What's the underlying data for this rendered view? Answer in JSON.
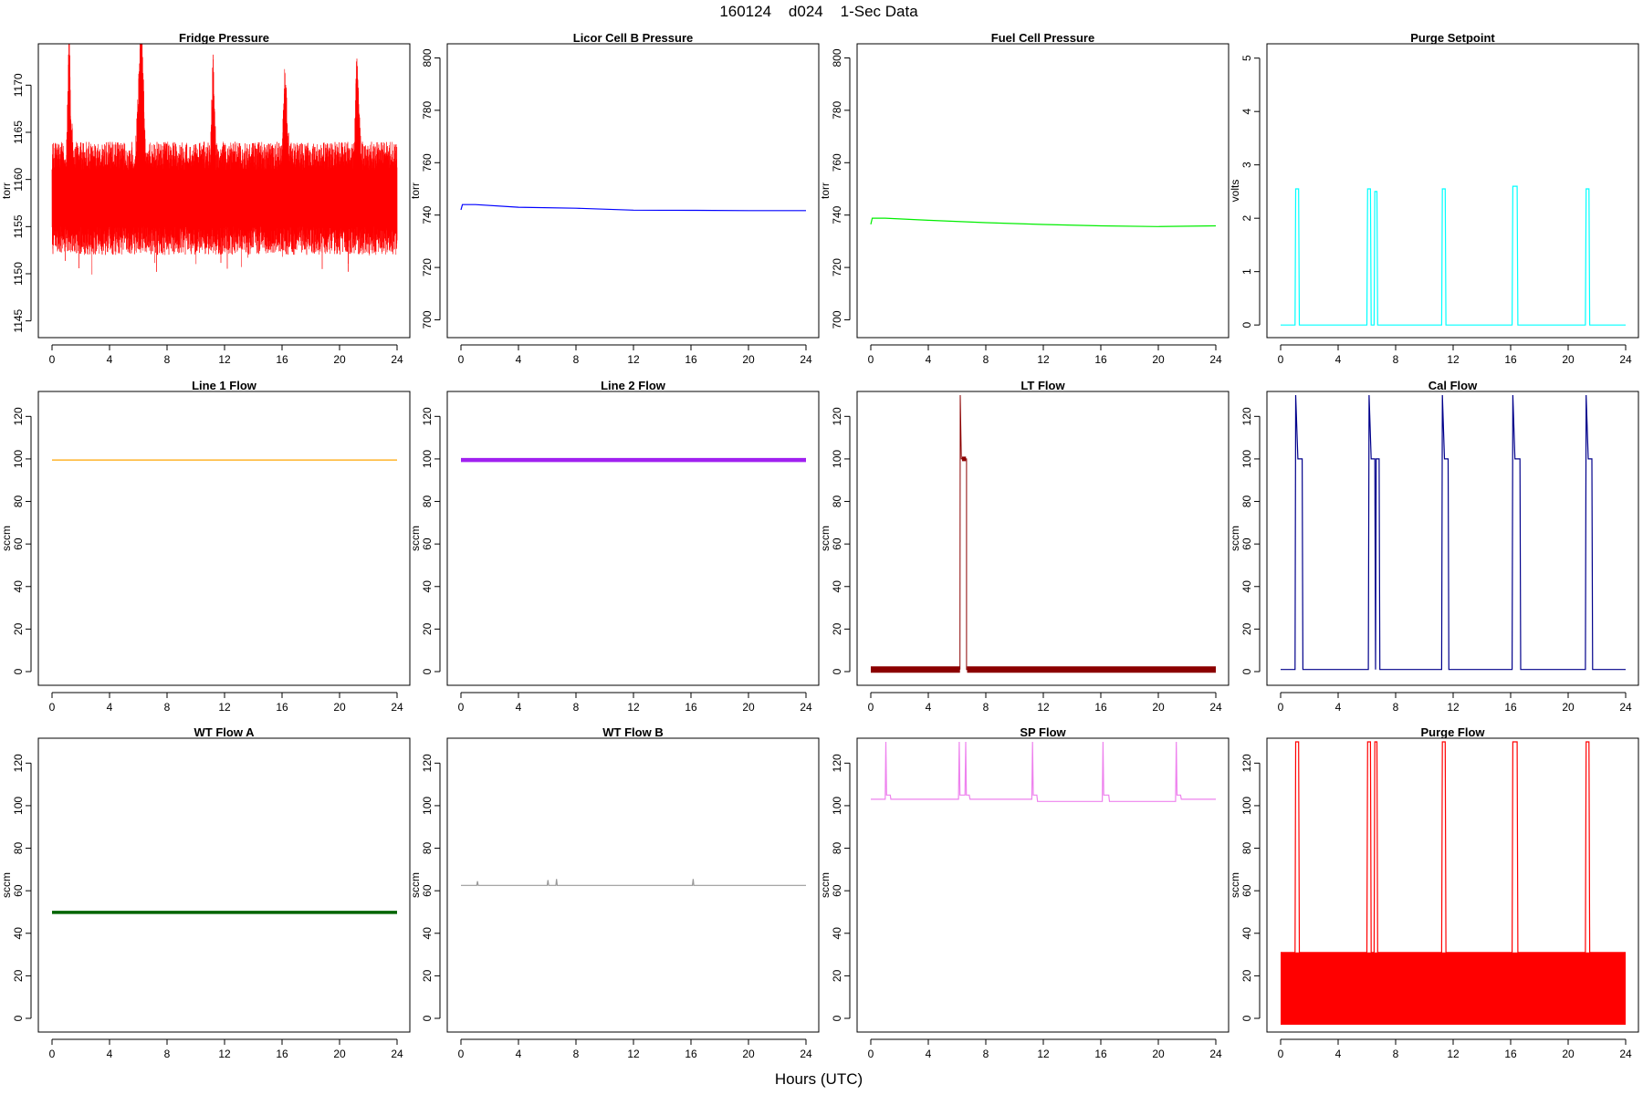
{
  "figure": {
    "title": "160124    d024    1-Sec Data",
    "xlabel": "Hours (UTC)"
  },
  "chart_data": [
    {
      "type": "line",
      "title": "Fridge Pressure",
      "ylabel": "torr",
      "color": "#ff0000",
      "xlim": [
        0,
        24
      ],
      "ylim": [
        1144,
        1174
      ],
      "xticks": [
        0,
        4,
        8,
        12,
        16,
        20,
        24
      ],
      "yticks": [
        1145,
        1150,
        1155,
        1160,
        1165,
        1170
      ],
      "noise": {
        "mean": 1158,
        "amplitude": 5,
        "thin": 0.5
      },
      "series": [
        {
          "x": [
            0,
            1.0,
            1.2,
            1.3,
            1.5,
            3,
            5.8,
            6.0,
            6.2,
            6.5,
            9,
            11.0,
            11.2,
            11.4,
            13,
            16.0,
            16.2,
            16.5,
            18,
            21.0,
            21.2,
            21.5,
            24
          ],
          "y": [
            1158,
            1158,
            1171,
            1162,
            1158,
            1158,
            1158,
            1164,
            1173,
            1158,
            1158,
            1158,
            1168,
            1158,
            1158,
            1158,
            1167,
            1158,
            1158,
            1158,
            1168,
            1158,
            1158
          ]
        }
      ]
    },
    {
      "type": "line",
      "title": "Licor Cell B Pressure",
      "ylabel": "torr",
      "color": "#0000ff",
      "xlim": [
        0,
        24
      ],
      "ylim": [
        696,
        804
      ],
      "xticks": [
        0,
        4,
        8,
        12,
        16,
        20,
        24
      ],
      "yticks": [
        700,
        720,
        740,
        760,
        780,
        800
      ],
      "series": [
        {
          "x": [
            0,
            0.1,
            1,
            4,
            8,
            12,
            16,
            20,
            24
          ],
          "y": [
            742,
            744,
            744,
            743,
            742.6,
            741.9,
            741.8,
            741.7,
            741.7
          ]
        }
      ]
    },
    {
      "type": "line",
      "title": "Fuel Cell Pressure",
      "ylabel": "torr",
      "color": "#00ee00",
      "xlim": [
        0,
        24
      ],
      "ylim": [
        696,
        804
      ],
      "xticks": [
        0,
        4,
        8,
        12,
        16,
        20,
        24
      ],
      "yticks": [
        700,
        720,
        740,
        760,
        780,
        800
      ],
      "series": [
        {
          "x": [
            0,
            0.1,
            1,
            4,
            8,
            12,
            16,
            20,
            24
          ],
          "y": [
            736.5,
            738.8,
            738.8,
            738,
            737.1,
            736.4,
            735.9,
            735.6,
            735.9
          ]
        }
      ]
    },
    {
      "type": "line",
      "title": "Purge Setpoint",
      "ylabel": "volts",
      "color": "#00ffff",
      "xlim": [
        0,
        24
      ],
      "ylim": [
        -0.1,
        5.2
      ],
      "xticks": [
        0,
        4,
        8,
        12,
        16,
        20,
        24
      ],
      "yticks": [
        0,
        1,
        2,
        3,
        4,
        5
      ],
      "series": [
        {
          "x": [
            0,
            1.0,
            1.05,
            1.25,
            1.3,
            6.0,
            6.05,
            6.25,
            6.3,
            6.5,
            6.55,
            6.7,
            6.75,
            11.2,
            11.25,
            11.45,
            11.5,
            16.1,
            16.15,
            16.45,
            16.5,
            21.2,
            21.25,
            21.45,
            21.5,
            24
          ],
          "y": [
            0,
            0,
            2.55,
            2.55,
            0,
            0,
            2.55,
            2.55,
            0,
            0,
            2.5,
            2.5,
            0,
            0,
            2.55,
            2.55,
            0,
            0,
            2.6,
            2.6,
            0,
            0,
            2.55,
            2.55,
            0,
            0
          ]
        }
      ]
    },
    {
      "type": "line",
      "title": "Line 1 Flow",
      "ylabel": "sccm",
      "color": "#ffa500",
      "xlim": [
        0,
        24
      ],
      "ylim": [
        -3,
        130
      ],
      "xticks": [
        0,
        4,
        8,
        12,
        16,
        20,
        24
      ],
      "yticks": [
        0,
        20,
        40,
        60,
        80,
        100,
        120
      ],
      "series": [
        {
          "x": [
            0,
            24
          ],
          "y": [
            99.5,
            99.5
          ]
        }
      ]
    },
    {
      "type": "line",
      "title": "Line 2 Flow",
      "ylabel": "sccm",
      "color": "#a020f0",
      "xlim": [
        0,
        24
      ],
      "ylim": [
        -3,
        130
      ],
      "xticks": [
        0,
        4,
        8,
        12,
        16,
        20,
        24
      ],
      "yticks": [
        0,
        20,
        40,
        60,
        80,
        100,
        120
      ],
      "series": [
        {
          "x": [
            0,
            24
          ],
          "y": [
            99.5,
            99.5
          ],
          "width": 4.5
        }
      ]
    },
    {
      "type": "line",
      "title": "LT Flow",
      "ylabel": "sccm",
      "color": "#8b0000",
      "xlim": [
        0,
        24
      ],
      "ylim": [
        -3,
        130
      ],
      "xticks": [
        0,
        4,
        8,
        12,
        16,
        20,
        24
      ],
      "yticks": [
        0,
        20,
        40,
        60,
        80,
        100,
        120
      ],
      "series": [
        {
          "x": [
            0,
            6.2
          ],
          "y": [
            1,
            1
          ],
          "width": 7
        },
        {
          "x": [
            6.7,
            24
          ],
          "y": [
            1,
            1
          ],
          "width": 7
        },
        {
          "x": [
            6.2,
            6.22,
            6.3,
            6.3,
            6.66,
            6.66,
            6.7
          ],
          "y": [
            1,
            130,
            100,
            100,
            100,
            1,
            1
          ],
          "width": 1
        },
        {
          "x": [
            6.35,
            6.62
          ],
          "y": [
            100,
            100
          ],
          "width": 5
        }
      ]
    },
    {
      "type": "line",
      "title": "Cal Flow",
      "ylabel": "sccm",
      "color": "#00008b",
      "xlim": [
        0,
        24
      ],
      "ylim": [
        -3,
        130
      ],
      "xticks": [
        0,
        4,
        8,
        12,
        16,
        20,
        24
      ],
      "yticks": [
        0,
        20,
        40,
        60,
        80,
        100,
        120
      ],
      "series": [
        {
          "x": [
            0,
            1.0,
            1.05,
            1.2,
            1.5,
            1.55,
            6.1,
            6.15,
            6.3,
            6.55,
            6.6,
            6.65,
            6.85,
            6.9,
            11.2,
            11.25,
            11.4,
            11.65,
            11.7,
            16.1,
            16.15,
            16.3,
            16.65,
            16.7,
            21.2,
            21.25,
            21.4,
            21.65,
            21.7,
            24
          ],
          "y": [
            1,
            1,
            130,
            100,
            100,
            1,
            1,
            130,
            100,
            100,
            1,
            100,
            100,
            1,
            1,
            130,
            100,
            100,
            1,
            1,
            130,
            100,
            100,
            1,
            1,
            130,
            100,
            100,
            1,
            1
          ]
        }
      ]
    },
    {
      "type": "line",
      "title": "WT Flow A",
      "ylabel": "sccm",
      "color": "#006400",
      "xlim": [
        0,
        24
      ],
      "ylim": [
        -3,
        130
      ],
      "xticks": [
        0,
        4,
        8,
        12,
        16,
        20,
        24
      ],
      "yticks": [
        0,
        20,
        40,
        60,
        80,
        100,
        120
      ],
      "series": [
        {
          "x": [
            0,
            24
          ],
          "y": [
            49.8,
            49.8
          ],
          "width": 3.5
        }
      ]
    },
    {
      "type": "line",
      "title": "WT Flow B",
      "ylabel": "sccm",
      "color": "#999999",
      "xlim": [
        0,
        24
      ],
      "ylim": [
        -3,
        130
      ],
      "xticks": [
        0,
        4,
        8,
        12,
        16,
        20,
        24
      ],
      "yticks": [
        0,
        20,
        40,
        60,
        80,
        100,
        120
      ],
      "series": [
        {
          "x": [
            0,
            1.1,
            1.15,
            1.2,
            6.0,
            6.05,
            6.1,
            6.6,
            6.65,
            6.7,
            16.1,
            16.15,
            16.2,
            24
          ],
          "y": [
            62.5,
            62.5,
            64.5,
            62.5,
            62.5,
            65,
            62.5,
            62.5,
            65.5,
            62.5,
            62.5,
            65.5,
            62.5,
            62.5
          ]
        }
      ]
    },
    {
      "type": "line",
      "title": "SP Flow",
      "ylabel": "sccm",
      "color": "#ee82ee",
      "xlim": [
        0,
        24
      ],
      "ylim": [
        -3,
        130
      ],
      "xticks": [
        0,
        4,
        8,
        12,
        16,
        20,
        24
      ],
      "yticks": [
        0,
        20,
        40,
        60,
        80,
        100,
        120
      ],
      "series": [
        {
          "x": [
            0,
            1.0,
            1.05,
            1.1,
            1.35,
            1.4,
            6.1,
            6.15,
            6.2,
            6.55,
            6.6,
            6.65,
            6.85,
            6.9,
            11.2,
            11.25,
            11.3,
            11.55,
            11.6,
            16.1,
            16.15,
            16.2,
            16.55,
            16.6,
            21.2,
            21.25,
            21.3,
            21.55,
            21.6,
            24
          ],
          "y": [
            103,
            103,
            130,
            105,
            105,
            103,
            103,
            130,
            105,
            105,
            130,
            105,
            105,
            103,
            103,
            130,
            105,
            105,
            102,
            102,
            130,
            105,
            105,
            102,
            102,
            130,
            105,
            105,
            103,
            103
          ]
        }
      ]
    },
    {
      "type": "line",
      "title": "Purge Flow",
      "ylabel": "sccm",
      "color": "#ff0000",
      "xlim": [
        0,
        24
      ],
      "ylim": [
        -3,
        130
      ],
      "xticks": [
        0,
        4,
        8,
        12,
        16,
        20,
        24
      ],
      "yticks": [
        0,
        20,
        40,
        60,
        80,
        100,
        120
      ],
      "band": {
        "x": [
          0,
          24
        ],
        "y": [
          -3,
          31
        ]
      },
      "series": [
        {
          "x": [
            0,
            1.0,
            1.05,
            1.25,
            1.3,
            6.0,
            6.05,
            6.25,
            6.3,
            6.5,
            6.55,
            6.7,
            6.75,
            11.2,
            11.25,
            11.45,
            11.5,
            16.1,
            16.15,
            16.45,
            16.5,
            21.2,
            21.25,
            21.45,
            21.5,
            24
          ],
          "y": [
            31,
            31,
            130,
            130,
            31,
            31,
            130,
            130,
            31,
            31,
            130,
            130,
            31,
            31,
            130,
            130,
            31,
            31,
            130,
            130,
            31,
            31,
            130,
            130,
            31,
            31
          ]
        }
      ]
    }
  ]
}
